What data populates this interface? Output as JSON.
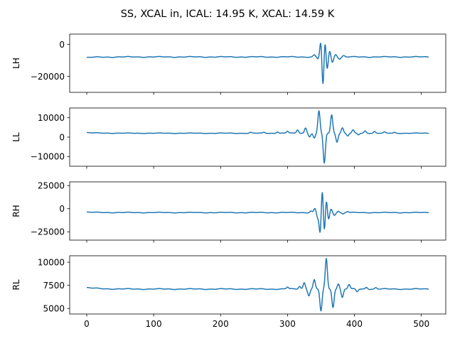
{
  "chart_data": {
    "type": "line",
    "title": "SS, XCAL in, ICAL: 14.95 K, XCAL: 14.59 K",
    "shared_x": true,
    "x_range": [
      0,
      511
    ],
    "xlim": [
      -25.5,
      536.5
    ],
    "x_ticks": [
      0,
      100,
      200,
      300,
      400,
      500
    ],
    "x_tick_labels": [
      "0",
      "100",
      "200",
      "300",
      "400",
      "500"
    ],
    "line_color": "#1f77b4",
    "panels": [
      {
        "ylabel": "LH",
        "ylim": [
          -30000,
          6500
        ],
        "y_ticks": [
          0,
          -20000
        ],
        "y_tick_labels": [
          "0",
          "−20000"
        ],
        "baseline": -7800,
        "baseline_start": -8200,
        "wiggle": 500,
        "burst": [
          {
            "x": 340,
            "amp": 1200
          },
          {
            "x": 346,
            "amp": -1400
          },
          {
            "x": 350,
            "amp": 11000
          },
          {
            "x": 353,
            "amp": -21000
          },
          {
            "x": 356,
            "amp": 12500
          },
          {
            "x": 359,
            "amp": -9000
          },
          {
            "x": 363,
            "amp": 4000
          },
          {
            "x": 367,
            "amp": -3500
          },
          {
            "x": 372,
            "amp": 1600
          },
          {
            "x": 378,
            "amp": -1200
          },
          {
            "x": 384,
            "amp": 800
          }
        ]
      },
      {
        "ylabel": "LL",
        "ylim": [
          -15000,
          15000
        ],
        "y_ticks": [
          10000,
          0,
          -10000
        ],
        "y_tick_labels": [
          "10000",
          "0",
          "−10000"
        ],
        "baseline": 2000,
        "baseline_start": 2300,
        "wiggle": 250,
        "burst": [
          {
            "x": 245,
            "amp": 400
          },
          {
            "x": 265,
            "amp": 500
          },
          {
            "x": 285,
            "amp": 700
          },
          {
            "x": 300,
            "amp": 1000
          },
          {
            "x": 315,
            "amp": 1700
          },
          {
            "x": 327,
            "amp": 2800
          },
          {
            "x": 333,
            "amp": -1800
          },
          {
            "x": 340,
            "amp": -2500
          },
          {
            "x": 347,
            "amp": 11500
          },
          {
            "x": 355,
            "amp": -15500
          },
          {
            "x": 366,
            "amp": 9500
          },
          {
            "x": 374,
            "amp": -4500
          },
          {
            "x": 382,
            "amp": 2800
          },
          {
            "x": 390,
            "amp": -1400
          },
          {
            "x": 398,
            "amp": 1600
          },
          {
            "x": 406,
            "amp": -800
          },
          {
            "x": 416,
            "amp": 1200
          },
          {
            "x": 430,
            "amp": 900
          },
          {
            "x": 445,
            "amp": 600
          },
          {
            "x": 460,
            "amp": 400
          }
        ]
      },
      {
        "ylabel": "RH",
        "ylim": [
          -34000,
          29000
        ],
        "y_ticks": [
          25000,
          0,
          -25000
        ],
        "y_tick_labels": [
          "25000",
          "0",
          "−25000"
        ],
        "baseline": -4200,
        "baseline_start": -3800,
        "wiggle": 700,
        "burst": [
          {
            "x": 335,
            "amp": 1800
          },
          {
            "x": 341,
            "amp": 4500
          },
          {
            "x": 345,
            "amp": -5000
          },
          {
            "x": 349,
            "amp": -25000
          },
          {
            "x": 352,
            "amp": 30000
          },
          {
            "x": 355,
            "amp": -26000
          },
          {
            "x": 358,
            "amp": 17000
          },
          {
            "x": 361,
            "amp": -9000
          },
          {
            "x": 365,
            "amp": 4000
          },
          {
            "x": 370,
            "amp": -3000
          },
          {
            "x": 376,
            "amp": 1800
          },
          {
            "x": 383,
            "amp": -1500
          },
          {
            "x": 390,
            "amp": 1100
          }
        ]
      },
      {
        "ylabel": "RL",
        "ylim": [
          4400,
          10700
        ],
        "y_ticks": [
          10000,
          7500,
          5000
        ],
        "y_tick_labels": [
          "10000",
          "7500",
          "5000"
        ],
        "baseline": 7100,
        "baseline_start": 7250,
        "wiggle": 90,
        "burst": [
          {
            "x": 300,
            "amp": 200
          },
          {
            "x": 318,
            "amp": 300
          },
          {
            "x": 325,
            "amp": 700
          },
          {
            "x": 332,
            "amp": -700
          },
          {
            "x": 340,
            "amp": 1000
          },
          {
            "x": 350,
            "amp": -2400
          },
          {
            "x": 358,
            "amp": 3300
          },
          {
            "x": 368,
            "amp": -2000
          },
          {
            "x": 376,
            "amp": 600
          },
          {
            "x": 382,
            "amp": -900
          },
          {
            "x": 392,
            "amp": 500
          },
          {
            "x": 404,
            "amp": -300
          },
          {
            "x": 418,
            "amp": 200
          },
          {
            "x": 432,
            "amp": 150
          }
        ]
      }
    ]
  }
}
